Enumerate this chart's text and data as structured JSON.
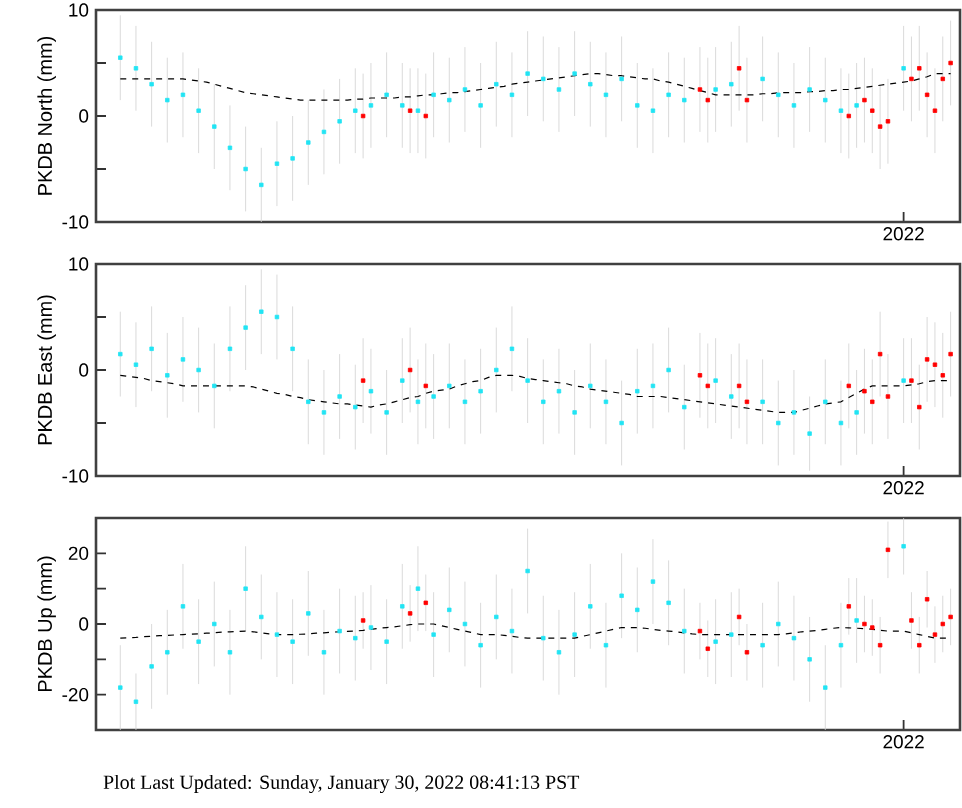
{
  "chart_data": [
    {
      "type": "scatter",
      "ylabel": "PKDB North (mm)",
      "marker": "square",
      "ylim": [
        -10,
        10
      ],
      "categories": [
        null,
        null,
        null,
        null,
        null,
        null,
        null,
        null,
        null,
        null,
        null,
        null,
        null,
        null,
        null,
        null,
        null,
        null,
        null,
        null,
        null,
        null,
        null,
        null,
        null,
        null,
        null,
        null,
        null,
        null,
        null,
        null,
        null,
        null,
        null,
        null,
        null,
        null,
        null,
        null,
        null,
        null,
        null,
        null,
        null,
        null,
        null,
        null,
        null,
        null,
        null,
        null,
        null,
        null,
        null,
        null,
        null,
        null,
        null,
        null,
        null,
        null,
        null,
        null,
        null,
        null,
        null,
        null,
        null,
        null,
        null,
        null,
        null,
        null,
        null,
        null,
        null,
        null,
        null,
        null,
        null,
        null,
        null,
        null,
        null,
        null,
        null,
        null,
        null,
        null,
        null,
        null,
        null,
        null,
        null,
        null,
        null,
        null,
        null,
        null,
        "2022",
        null,
        null,
        null,
        null,
        null,
        null
      ],
      "yticks": [
        -10,
        0,
        10
      ],
      "series": [
        {
          "color": "#22e4f4",
          "values": [
            5.5,
            null,
            4.5,
            null,
            3,
            null,
            1.5,
            null,
            2,
            null,
            0.5,
            null,
            -1,
            null,
            -3,
            null,
            -5,
            null,
            -6.5,
            null,
            -4.5,
            null,
            -4,
            null,
            -2.5,
            null,
            -1.5,
            null,
            -0.5,
            null,
            0.5,
            null,
            1,
            null,
            2,
            null,
            1,
            null,
            0.5,
            null,
            2,
            null,
            1.5,
            null,
            2.5,
            null,
            1,
            null,
            3,
            null,
            2,
            null,
            4,
            null,
            3.5,
            null,
            2.5,
            null,
            4,
            null,
            3,
            null,
            2,
            null,
            3.5,
            null,
            1,
            null,
            0.5,
            null,
            2,
            null,
            1.5,
            null,
            null,
            null,
            2.5,
            null,
            3,
            null,
            null,
            null,
            3.5,
            null,
            2,
            null,
            1,
            null,
            2.5,
            null,
            1.5,
            null,
            0.5,
            null,
            1,
            null,
            null,
            null,
            null,
            null,
            4.5,
            null,
            null,
            null,
            null,
            null,
            null
          ],
          "errors": [
            4,
            null,
            4,
            null,
            4,
            null,
            4,
            null,
            4,
            null,
            4,
            null,
            4,
            null,
            4,
            null,
            4,
            null,
            3.5,
            null,
            4,
            null,
            4,
            null,
            4,
            null,
            4,
            null,
            4,
            null,
            4,
            null,
            4,
            null,
            4,
            null,
            4,
            null,
            4,
            null,
            4,
            null,
            4,
            null,
            4,
            null,
            4,
            null,
            4,
            null,
            4,
            null,
            4,
            null,
            4,
            null,
            4,
            null,
            4,
            null,
            4,
            null,
            4,
            null,
            4,
            null,
            4,
            null,
            4,
            null,
            4,
            null,
            4,
            null,
            null,
            null,
            4,
            null,
            4,
            null,
            null,
            null,
            4,
            null,
            4,
            null,
            4,
            null,
            4,
            null,
            4,
            null,
            4,
            null,
            4,
            null,
            null,
            null,
            null,
            null,
            4,
            null,
            null,
            null,
            null,
            null,
            null
          ]
        },
        {
          "color": "#ff0000",
          "values": [
            null,
            null,
            null,
            null,
            null,
            null,
            null,
            null,
            null,
            null,
            null,
            null,
            null,
            null,
            null,
            null,
            null,
            null,
            null,
            null,
            null,
            null,
            null,
            null,
            null,
            null,
            null,
            null,
            null,
            null,
            null,
            0,
            null,
            null,
            null,
            null,
            null,
            0.5,
            null,
            0,
            null,
            null,
            null,
            null,
            null,
            null,
            null,
            null,
            null,
            null,
            null,
            null,
            null,
            null,
            null,
            null,
            null,
            null,
            null,
            null,
            null,
            null,
            null,
            null,
            null,
            null,
            null,
            null,
            null,
            null,
            null,
            null,
            null,
            null,
            2.5,
            1.5,
            null,
            null,
            null,
            4.5,
            1.5,
            null,
            null,
            null,
            null,
            null,
            null,
            null,
            null,
            null,
            null,
            null,
            null,
            0,
            null,
            1.5,
            0.5,
            -1,
            -0.5,
            null,
            null,
            3.5,
            4.5,
            2,
            0.5,
            3.5,
            5
          ],
          "errors": [
            null,
            null,
            null,
            null,
            null,
            null,
            null,
            null,
            null,
            null,
            null,
            null,
            null,
            null,
            null,
            null,
            null,
            null,
            null,
            null,
            null,
            null,
            null,
            null,
            null,
            null,
            null,
            null,
            null,
            null,
            null,
            4,
            null,
            null,
            null,
            null,
            null,
            4,
            null,
            4,
            null,
            null,
            null,
            null,
            null,
            null,
            null,
            null,
            null,
            null,
            null,
            null,
            null,
            null,
            null,
            null,
            null,
            null,
            null,
            null,
            null,
            null,
            null,
            null,
            null,
            null,
            null,
            null,
            null,
            null,
            null,
            null,
            null,
            null,
            4,
            4,
            null,
            null,
            null,
            4,
            4,
            null,
            null,
            null,
            null,
            null,
            null,
            null,
            null,
            null,
            null,
            null,
            null,
            4,
            null,
            4,
            4,
            4,
            4,
            null,
            null,
            4,
            4,
            4,
            4,
            4,
            4
          ]
        },
        {
          "type": "line",
          "color": "#000000",
          "marker": "none",
          "line_style": "dashed",
          "values": [
            3.5,
            3.5,
            3.5,
            3.5,
            3.5,
            3.5,
            3.5,
            3.5,
            3.5,
            3.4,
            3.3,
            3.2,
            3,
            2.8,
            2.6,
            2.4,
            2.2,
            2.1,
            2,
            1.9,
            1.8,
            1.7,
            1.6,
            1.5,
            1.5,
            1.5,
            1.5,
            1.5,
            1.5,
            1.5,
            1.6,
            1.6,
            1.7,
            1.7,
            1.7,
            1.7,
            1.8,
            1.8,
            1.9,
            2,
            2,
            2.1,
            2.2,
            2.2,
            2.3,
            2.4,
            2.5,
            2.6,
            2.7,
            2.8,
            3,
            3.1,
            3.2,
            3.3,
            3.4,
            3.5,
            3.6,
            3.7,
            3.8,
            3.9,
            4,
            4,
            3.9,
            3.8,
            3.8,
            3.7,
            3.6,
            3.5,
            3.5,
            3.3,
            3.2,
            3,
            2.8,
            2.6,
            2.4,
            2.2,
            2,
            2,
            2,
            2,
            2,
            2,
            2.1,
            2.1,
            2.2,
            2.2,
            2.2,
            2.2,
            2.3,
            2.3,
            2.4,
            2.4,
            2.5,
            2.5,
            2.6,
            2.7,
            2.8,
            2.9,
            3,
            3.1,
            3.2,
            3.3,
            3.5,
            3.7,
            4,
            4,
            4
          ]
        }
      ]
    },
    {
      "type": "scatter",
      "ylabel": "PKDB East (mm)",
      "marker": "square",
      "ylim": [
        -10,
        10
      ],
      "categories": [
        null,
        null,
        null,
        null,
        null,
        null,
        null,
        null,
        null,
        null,
        null,
        null,
        null,
        null,
        null,
        null,
        null,
        null,
        null,
        null,
        null,
        null,
        null,
        null,
        null,
        null,
        null,
        null,
        null,
        null,
        null,
        null,
        null,
        null,
        null,
        null,
        null,
        null,
        null,
        null,
        null,
        null,
        null,
        null,
        null,
        null,
        null,
        null,
        null,
        null,
        null,
        null,
        null,
        null,
        null,
        null,
        null,
        null,
        null,
        null,
        null,
        null,
        null,
        null,
        null,
        null,
        null,
        null,
        null,
        null,
        null,
        null,
        null,
        null,
        null,
        null,
        null,
        null,
        null,
        null,
        null,
        null,
        null,
        null,
        null,
        null,
        null,
        null,
        null,
        null,
        null,
        null,
        null,
        null,
        null,
        null,
        null,
        null,
        null,
        null,
        "2022",
        null,
        null,
        null,
        null,
        null,
        null
      ],
      "yticks": [
        -10,
        0,
        10
      ],
      "series": [
        {
          "color": "#22e4f4",
          "values": [
            1.5,
            null,
            0.5,
            null,
            2,
            null,
            -0.5,
            null,
            1,
            null,
            0,
            null,
            -1.5,
            null,
            2,
            null,
            4,
            null,
            5.5,
            null,
            5,
            null,
            2,
            null,
            -3,
            null,
            -4,
            null,
            -2.5,
            null,
            -3.5,
            null,
            -2,
            null,
            -4,
            null,
            -1,
            null,
            -3,
            null,
            -2.5,
            null,
            -1.5,
            null,
            -3,
            null,
            -2,
            null,
            0,
            null,
            2,
            null,
            -1,
            null,
            -3,
            null,
            -2,
            null,
            -4,
            null,
            -1.5,
            null,
            -3,
            null,
            -5,
            null,
            -2,
            null,
            -1.5,
            null,
            0,
            null,
            -3.5,
            null,
            null,
            null,
            -1,
            null,
            -2.5,
            null,
            null,
            null,
            -3,
            null,
            -5,
            null,
            -4,
            null,
            -6,
            null,
            -3,
            null,
            -5,
            null,
            -4,
            null,
            null,
            null,
            null,
            null,
            -1,
            null,
            null,
            null,
            null,
            null,
            null
          ],
          "errors": [
            4,
            null,
            4,
            null,
            4,
            null,
            4,
            null,
            4,
            null,
            4,
            null,
            4,
            null,
            4,
            null,
            4,
            null,
            4,
            null,
            4,
            null,
            4,
            null,
            4,
            null,
            4,
            null,
            4,
            null,
            4,
            null,
            4,
            null,
            4,
            null,
            4,
            null,
            4,
            null,
            4,
            null,
            4,
            null,
            4,
            null,
            4,
            null,
            4,
            null,
            4,
            null,
            4,
            null,
            4,
            null,
            4,
            null,
            4,
            null,
            4,
            null,
            4,
            null,
            4,
            null,
            4,
            null,
            4,
            null,
            4,
            null,
            4,
            null,
            null,
            null,
            4,
            null,
            4,
            null,
            null,
            null,
            4,
            null,
            4,
            null,
            4,
            null,
            3.5,
            null,
            4,
            null,
            4,
            null,
            4,
            null,
            null,
            null,
            null,
            null,
            4,
            null,
            null,
            null,
            null,
            null,
            null
          ]
        },
        {
          "color": "#ff0000",
          "values": [
            null,
            null,
            null,
            null,
            null,
            null,
            null,
            null,
            null,
            null,
            null,
            null,
            null,
            null,
            null,
            null,
            null,
            null,
            null,
            null,
            null,
            null,
            null,
            null,
            null,
            null,
            null,
            null,
            null,
            null,
            null,
            -1,
            null,
            null,
            null,
            null,
            null,
            0,
            null,
            -1.5,
            null,
            null,
            null,
            null,
            null,
            null,
            null,
            null,
            null,
            null,
            null,
            null,
            null,
            null,
            null,
            null,
            null,
            null,
            null,
            null,
            null,
            null,
            null,
            null,
            null,
            null,
            null,
            null,
            null,
            null,
            null,
            null,
            null,
            null,
            -0.5,
            -1.5,
            null,
            null,
            null,
            -1.5,
            -3,
            null,
            null,
            null,
            null,
            null,
            null,
            null,
            null,
            null,
            null,
            null,
            null,
            -1.5,
            null,
            -2,
            -3,
            1.5,
            -2.5,
            null,
            null,
            -1,
            -3.5,
            1,
            0.5,
            -0.5,
            1.5
          ],
          "errors": [
            null,
            null,
            null,
            null,
            null,
            null,
            null,
            null,
            null,
            null,
            null,
            null,
            null,
            null,
            null,
            null,
            null,
            null,
            null,
            null,
            null,
            null,
            null,
            null,
            null,
            null,
            null,
            null,
            null,
            null,
            null,
            4,
            null,
            null,
            null,
            null,
            null,
            4,
            null,
            4,
            null,
            null,
            null,
            null,
            null,
            null,
            null,
            null,
            null,
            null,
            null,
            null,
            null,
            null,
            null,
            null,
            null,
            null,
            null,
            null,
            null,
            null,
            null,
            null,
            null,
            null,
            null,
            null,
            null,
            null,
            null,
            null,
            null,
            null,
            4,
            4,
            null,
            null,
            null,
            4,
            4,
            null,
            null,
            null,
            null,
            null,
            null,
            null,
            null,
            null,
            null,
            null,
            null,
            4,
            null,
            4,
            4,
            4,
            4,
            null,
            null,
            4,
            4,
            4,
            4,
            4,
            4
          ]
        },
        {
          "type": "line",
          "color": "#000000",
          "marker": "none",
          "line_style": "dashed",
          "values": [
            -0.5,
            -0.6,
            -0.7,
            -0.8,
            -1,
            -1.1,
            -1.2,
            -1.3,
            -1.5,
            -1.5,
            -1.5,
            -1.5,
            -1.5,
            -1.5,
            -1.5,
            -1.5,
            -1.5,
            -1.6,
            -1.8,
            -2,
            -2.2,
            -2.3,
            -2.5,
            -2.6,
            -2.8,
            -2.9,
            -3,
            -3.1,
            -3.2,
            -3.2,
            -3.3,
            -3.4,
            -3.5,
            -3.3,
            -3.2,
            -3,
            -2.8,
            -2.6,
            -2.5,
            -2.2,
            -2,
            -1.9,
            -1.8,
            -1.5,
            -1.3,
            -1.1,
            -1,
            -0.7,
            -0.5,
            -0.5,
            -0.5,
            -0.6,
            -0.8,
            -0.9,
            -1,
            -1.1,
            -1.2,
            -1.3,
            -1.5,
            -1.6,
            -1.8,
            -1.9,
            -2,
            -2.1,
            -2.2,
            -2.3,
            -2.5,
            -2.5,
            -2.5,
            -2.5,
            -2.6,
            -2.7,
            -2.8,
            -2.9,
            -3,
            -3.1,
            -3.2,
            -3.3,
            -3.4,
            -3.5,
            -3.6,
            -3.7,
            -3.8,
            -3.9,
            -4,
            -4,
            -4,
            -3.8,
            -3.6,
            -3.4,
            -3.2,
            -3.1,
            -3,
            -2.6,
            -2.2,
            -1.8,
            -1.5,
            -1.5,
            -1.5,
            -1.5,
            -1.5,
            -1.4,
            -1.3,
            -1.1,
            -1,
            -1,
            -1
          ]
        }
      ]
    },
    {
      "type": "scatter",
      "ylabel": "PKDB Up (mm)",
      "marker": "square",
      "ylim": [
        -30,
        30
      ],
      "categories": [
        null,
        null,
        null,
        null,
        null,
        null,
        null,
        null,
        null,
        null,
        null,
        null,
        null,
        null,
        null,
        null,
        null,
        null,
        null,
        null,
        null,
        null,
        null,
        null,
        null,
        null,
        null,
        null,
        null,
        null,
        null,
        null,
        null,
        null,
        null,
        null,
        null,
        null,
        null,
        null,
        null,
        null,
        null,
        null,
        null,
        null,
        null,
        null,
        null,
        null,
        null,
        null,
        null,
        null,
        null,
        null,
        null,
        null,
        null,
        null,
        null,
        null,
        null,
        null,
        null,
        null,
        null,
        null,
        null,
        null,
        null,
        null,
        null,
        null,
        null,
        null,
        null,
        null,
        null,
        null,
        null,
        null,
        null,
        null,
        null,
        null,
        null,
        null,
        null,
        null,
        null,
        null,
        null,
        null,
        null,
        null,
        null,
        null,
        null,
        null,
        "2022",
        null,
        null,
        null,
        null,
        null,
        null
      ],
      "yticks": [
        -20,
        0,
        20
      ],
      "annotations": [
        "Plot Last Updated:   Sunday, January 30, 2022 08:41:13 PST"
      ],
      "series": [
        {
          "color": "#22e4f4",
          "values": [
            -18,
            null,
            -22,
            null,
            -12,
            null,
            -8,
            null,
            5,
            null,
            -5,
            null,
            0,
            null,
            -8,
            null,
            10,
            null,
            2,
            null,
            -3,
            null,
            -5,
            null,
            3,
            null,
            -8,
            null,
            -2,
            null,
            -4,
            null,
            -1,
            null,
            -5,
            null,
            5,
            null,
            10,
            null,
            -3,
            null,
            4,
            null,
            0,
            null,
            -6,
            null,
            2,
            null,
            -2,
            null,
            15,
            null,
            -4,
            null,
            -8,
            null,
            -3,
            null,
            5,
            null,
            -6,
            null,
            8,
            null,
            4,
            null,
            12,
            null,
            6,
            null,
            -2,
            null,
            null,
            null,
            -5,
            null,
            -3,
            null,
            null,
            null,
            -6,
            null,
            0,
            null,
            -4,
            null,
            -10,
            null,
            -18,
            null,
            -6,
            null,
            1,
            null,
            null,
            null,
            null,
            null,
            22,
            null,
            null,
            null,
            null,
            null,
            null
          ],
          "errors": [
            12,
            null,
            8,
            null,
            12,
            null,
            12,
            null,
            12,
            null,
            12,
            null,
            12,
            null,
            12,
            null,
            12,
            null,
            12,
            null,
            12,
            null,
            12,
            null,
            12,
            null,
            12,
            null,
            12,
            null,
            12,
            null,
            12,
            null,
            12,
            null,
            12,
            null,
            12,
            null,
            12,
            null,
            12,
            null,
            12,
            null,
            12,
            null,
            12,
            null,
            12,
            null,
            12,
            null,
            12,
            null,
            12,
            null,
            12,
            null,
            12,
            null,
            12,
            null,
            12,
            null,
            12,
            null,
            12,
            null,
            12,
            null,
            12,
            null,
            null,
            null,
            12,
            null,
            12,
            null,
            null,
            null,
            12,
            null,
            12,
            null,
            12,
            null,
            12,
            null,
            12,
            null,
            12,
            null,
            12,
            null,
            null,
            null,
            null,
            null,
            8,
            null,
            null,
            null,
            null,
            null,
            null
          ]
        },
        {
          "color": "#ff0000",
          "values": [
            null,
            null,
            null,
            null,
            null,
            null,
            null,
            null,
            null,
            null,
            null,
            null,
            null,
            null,
            null,
            null,
            null,
            null,
            null,
            null,
            null,
            null,
            null,
            null,
            null,
            null,
            null,
            null,
            null,
            null,
            null,
            1,
            null,
            null,
            null,
            null,
            null,
            3,
            null,
            6,
            null,
            null,
            null,
            null,
            null,
            null,
            null,
            null,
            null,
            null,
            null,
            null,
            null,
            null,
            null,
            null,
            null,
            null,
            null,
            null,
            null,
            null,
            null,
            null,
            null,
            null,
            null,
            null,
            null,
            null,
            null,
            null,
            null,
            null,
            -2,
            -7,
            null,
            null,
            null,
            2,
            -8,
            null,
            null,
            null,
            null,
            null,
            null,
            null,
            null,
            null,
            null,
            null,
            null,
            5,
            null,
            0,
            -1,
            -6,
            21,
            null,
            null,
            1,
            -6,
            7,
            -3,
            0,
            2
          ],
          "errors": [
            null,
            null,
            null,
            null,
            null,
            null,
            null,
            null,
            null,
            null,
            null,
            null,
            null,
            null,
            null,
            null,
            null,
            null,
            null,
            null,
            null,
            null,
            null,
            null,
            null,
            null,
            null,
            null,
            null,
            null,
            null,
            8,
            null,
            null,
            null,
            null,
            null,
            8,
            null,
            8,
            null,
            null,
            null,
            null,
            null,
            null,
            null,
            null,
            null,
            null,
            null,
            null,
            null,
            null,
            null,
            null,
            null,
            null,
            null,
            null,
            null,
            null,
            null,
            null,
            null,
            null,
            null,
            null,
            null,
            null,
            null,
            null,
            null,
            null,
            8,
            8,
            null,
            null,
            null,
            8,
            8,
            null,
            null,
            null,
            null,
            null,
            null,
            null,
            null,
            null,
            null,
            null,
            null,
            8,
            null,
            8,
            8,
            8,
            8,
            null,
            null,
            8,
            8,
            8,
            8,
            8,
            8
          ]
        },
        {
          "type": "line",
          "color": "#000000",
          "marker": "none",
          "line_style": "dashed",
          "values": [
            -4,
            -3.9,
            -3.8,
            -3.6,
            -3.5,
            -3.3,
            -3.2,
            -3.1,
            -3,
            -2.9,
            -2.8,
            -2.6,
            -2.5,
            -2.3,
            -2.2,
            -2.1,
            -2,
            -2.2,
            -2.5,
            -2.8,
            -3,
            -3,
            -3,
            -2.9,
            -2.8,
            -2.6,
            -2.5,
            -2.3,
            -2.2,
            -2.1,
            -2,
            -1.8,
            -1.5,
            -1.2,
            -1,
            -0.8,
            -0.5,
            -0.2,
            0,
            0,
            0,
            -0.5,
            -1,
            -1.5,
            -2,
            -2.5,
            -3,
            -3,
            -3,
            -3.2,
            -3.5,
            -3.8,
            -4,
            -4,
            -4,
            -4,
            -4,
            -4,
            -4,
            -3.5,
            -3,
            -2.5,
            -2,
            -1.5,
            -1,
            -1,
            -1,
            -1.2,
            -1.5,
            -1.8,
            -2,
            -2.2,
            -2.5,
            -2.8,
            -3,
            -3,
            -3,
            -3,
            -3,
            -3,
            -3,
            -3,
            -3,
            -3,
            -3,
            -2.8,
            -2.5,
            -2.2,
            -2,
            -1.8,
            -1.5,
            -1.2,
            -1,
            -1.1,
            -1.2,
            -1.3,
            -1.5,
            -1.8,
            -2,
            -2,
            -2,
            -2.5,
            -3,
            -3.5,
            -4,
            -4,
            -4
          ]
        }
      ]
    }
  ]
}
